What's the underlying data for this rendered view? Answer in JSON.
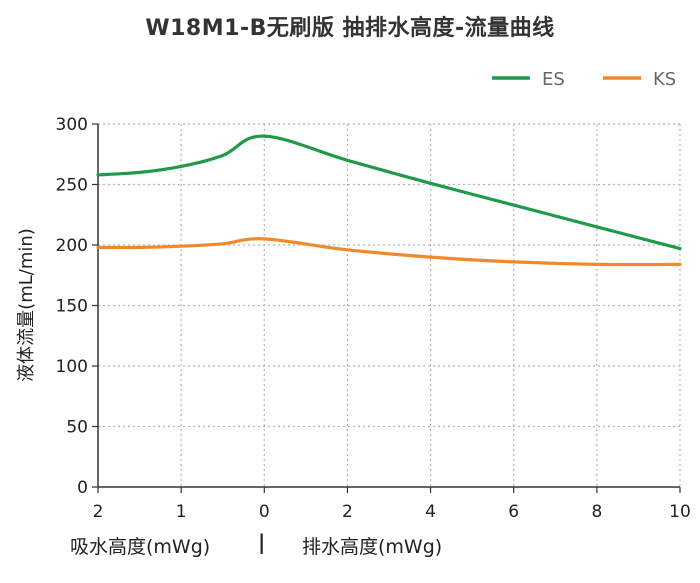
{
  "chart_data": {
    "type": "line",
    "title": "W18M1-B无刷版 抽排水高度-流量曲线",
    "ylabel": "液体流量(mL/min)",
    "xlabel_left": "吸水高度(mWg)",
    "xlabel_separator": "|",
    "xlabel_right": "排水高度(mWg)",
    "x_tick_labels": [
      "2",
      "1",
      "0",
      "2",
      "4",
      "6",
      "8",
      "10"
    ],
    "x_positions": [
      -2,
      -1,
      0,
      2,
      4,
      6,
      8,
      10
    ],
    "ylim": [
      0,
      300
    ],
    "y_ticks": [
      0,
      50,
      100,
      150,
      200,
      250,
      300
    ],
    "grid": true,
    "legend_position": "top-right",
    "series": [
      {
        "name": "ES",
        "color": "#1e9a4a",
        "points": [
          [
            -2,
            258
          ],
          [
            -1.5,
            260
          ],
          [
            -1,
            265
          ],
          [
            -0.5,
            274
          ],
          [
            0,
            290
          ],
          [
            2,
            270
          ],
          [
            4,
            251
          ],
          [
            6,
            233
          ],
          [
            8,
            215
          ],
          [
            10,
            197
          ]
        ]
      },
      {
        "name": "KS",
        "color": "#f0892a",
        "points": [
          [
            -2,
            198
          ],
          [
            -1.5,
            198
          ],
          [
            -1,
            199
          ],
          [
            -0.5,
            201
          ],
          [
            0,
            205
          ],
          [
            2,
            196
          ],
          [
            4,
            190
          ],
          [
            6,
            186
          ],
          [
            8,
            184
          ],
          [
            10,
            184
          ]
        ]
      }
    ]
  }
}
